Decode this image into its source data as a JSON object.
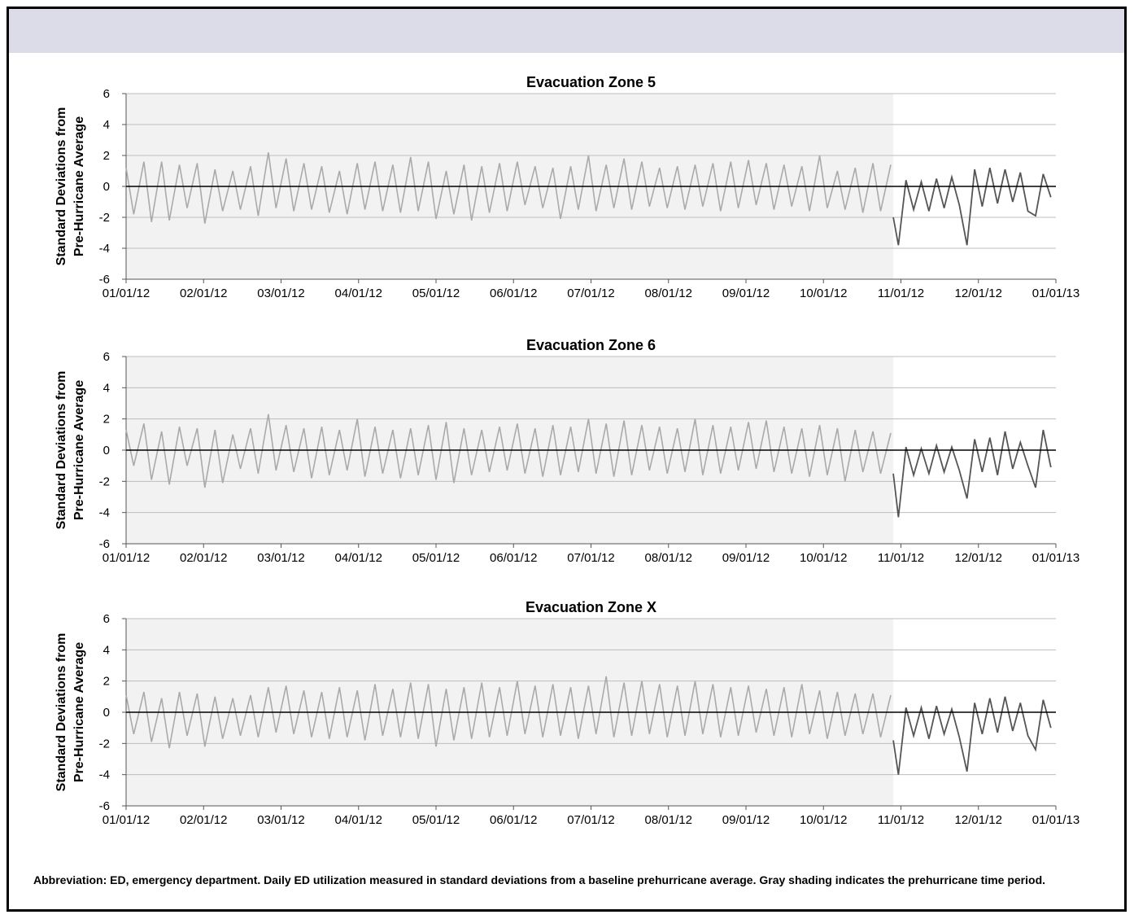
{
  "caption": "Abbreviation: ED, emergency department. Daily ED utilization measured in standard deviations from a baseline prehurricane average. Gray shading indicates the prehurricane time period.",
  "chart_data": [
    {
      "type": "line",
      "title": "Evacuation Zone 5",
      "ylabel_lines": [
        "Standard Deviations from",
        "Pre-Hurricane Average"
      ],
      "ylim": [
        -6,
        6
      ],
      "yticks": [
        -6,
        -4,
        -2,
        0,
        2,
        4,
        6
      ],
      "xlim": [
        "2012-01-01",
        "2013-01-01"
      ],
      "xtick_labels": [
        "01/01/12",
        "02/01/12",
        "03/01/12",
        "04/01/12",
        "05/01/12",
        "06/01/12",
        "07/01/12",
        "08/01/12",
        "09/01/12",
        "10/01/12",
        "11/01/12",
        "12/01/12",
        "01/01/13"
      ],
      "shaded_period": [
        "2012-01-01",
        "2012-10-29"
      ],
      "grid": true,
      "series": [
        {
          "color": "#aaaaaa",
          "x": [
            "2012-01-01",
            "2012-01-08",
            "2012-01-15",
            "2012-01-22",
            "2012-01-29",
            "2012-02-05",
            "2012-02-12",
            "2012-02-19",
            "2012-02-26",
            "2012-03-04",
            "2012-03-11",
            "2012-03-18",
            "2012-03-25",
            "2012-04-01",
            "2012-04-08",
            "2012-04-15",
            "2012-04-22",
            "2012-04-29",
            "2012-05-06",
            "2012-05-13",
            "2012-05-20",
            "2012-05-27",
            "2012-06-03",
            "2012-06-10",
            "2012-06-17",
            "2012-06-24",
            "2012-07-01",
            "2012-07-08",
            "2012-07-15",
            "2012-07-22",
            "2012-07-29",
            "2012-08-05",
            "2012-08-12",
            "2012-08-19",
            "2012-08-26",
            "2012-09-02",
            "2012-09-09",
            "2012-09-16",
            "2012-09-23",
            "2012-09-30",
            "2012-10-07",
            "2012-10-14",
            "2012-10-21",
            "2012-10-28"
          ],
          "y": [
            1.2,
            1.6,
            1.6,
            1.4,
            1.5,
            1.1,
            1.0,
            1.3,
            2.2,
            1.8,
            1.5,
            1.3,
            1.0,
            1.5,
            1.6,
            1.4,
            1.9,
            1.6,
            1.0,
            1.4,
            1.3,
            1.5,
            1.6,
            1.3,
            1.2,
            1.3,
            2.0,
            1.4,
            1.8,
            1.6,
            1.2,
            1.3,
            1.4,
            1.5,
            1.6,
            1.7,
            1.5,
            1.4,
            1.3,
            2.0,
            1.0,
            1.2,
            1.5,
            1.4
          ]
        },
        {
          "color": "#aaaaaa",
          "x": [
            "2012-01-04",
            "2012-01-11",
            "2012-01-18",
            "2012-01-25",
            "2012-02-01",
            "2012-02-08",
            "2012-02-15",
            "2012-02-22",
            "2012-02-29",
            "2012-03-07",
            "2012-03-14",
            "2012-03-21",
            "2012-03-28",
            "2012-04-04",
            "2012-04-11",
            "2012-04-18",
            "2012-04-25",
            "2012-05-02",
            "2012-05-09",
            "2012-05-16",
            "2012-05-23",
            "2012-05-30",
            "2012-06-06",
            "2012-06-13",
            "2012-06-20",
            "2012-06-27",
            "2012-07-04",
            "2012-07-11",
            "2012-07-18",
            "2012-07-25",
            "2012-08-01",
            "2012-08-08",
            "2012-08-15",
            "2012-08-22",
            "2012-08-29",
            "2012-09-05",
            "2012-09-12",
            "2012-09-19",
            "2012-09-26",
            "2012-10-03",
            "2012-10-10",
            "2012-10-17",
            "2012-10-24"
          ],
          "y": [
            -1.8,
            -2.3,
            -2.2,
            -1.4,
            -2.4,
            -1.6,
            -1.5,
            -1.9,
            -1.4,
            -1.6,
            -1.5,
            -1.7,
            -1.8,
            -1.5,
            -1.6,
            -1.7,
            -1.6,
            -2.1,
            -1.8,
            -2.2,
            -1.7,
            -1.6,
            -1.2,
            -1.4,
            -2.1,
            -1.5,
            -1.6,
            -1.4,
            -1.5,
            -1.3,
            -1.4,
            -1.5,
            -1.3,
            -1.6,
            -1.4,
            -1.2,
            -1.5,
            -1.3,
            -1.6,
            -1.4,
            -1.5,
            -1.7,
            -1.6
          ]
        },
        {
          "color": "#555555",
          "x": [
            "2012-10-29",
            "2012-10-31",
            "2012-11-03",
            "2012-11-06",
            "2012-11-09",
            "2012-11-12",
            "2012-11-15",
            "2012-11-18",
            "2012-11-21",
            "2012-11-24",
            "2012-11-27",
            "2012-11-30",
            "2012-12-03",
            "2012-12-06",
            "2012-12-09",
            "2012-12-12",
            "2012-12-15",
            "2012-12-18",
            "2012-12-21",
            "2012-12-24",
            "2012-12-27",
            "2012-12-30"
          ],
          "y": [
            -2.0,
            -3.8,
            0.4,
            -1.5,
            0.3,
            -1.6,
            0.5,
            -1.4,
            0.6,
            -1.2,
            -3.8,
            1.1,
            -1.3,
            1.2,
            -1.1,
            1.1,
            -1.0,
            0.9,
            -1.6,
            -1.9,
            0.8,
            -0.7
          ]
        }
      ]
    },
    {
      "type": "line",
      "title": "Evacuation Zone 6",
      "ylabel_lines": [
        "Standard Deviations from",
        "Pre-Hurricane Average"
      ],
      "ylim": [
        -6,
        6
      ],
      "yticks": [
        -6,
        -4,
        -2,
        0,
        2,
        4,
        6
      ],
      "xlim": [
        "2012-01-01",
        "2013-01-01"
      ],
      "xtick_labels": [
        "01/01/12",
        "02/01/12",
        "03/01/12",
        "04/01/12",
        "05/01/12",
        "06/01/12",
        "07/01/12",
        "08/01/12",
        "09/01/12",
        "10/01/12",
        "11/01/12",
        "12/01/12",
        "01/01/13"
      ],
      "shaded_period": [
        "2012-01-01",
        "2012-10-29"
      ],
      "grid": true,
      "series": [
        {
          "color": "#aaaaaa",
          "x": [
            "2012-01-01",
            "2012-01-08",
            "2012-01-15",
            "2012-01-22",
            "2012-01-29",
            "2012-02-05",
            "2012-02-12",
            "2012-02-19",
            "2012-02-26",
            "2012-03-04",
            "2012-03-11",
            "2012-03-18",
            "2012-03-25",
            "2012-04-01",
            "2012-04-08",
            "2012-04-15",
            "2012-04-22",
            "2012-04-29",
            "2012-05-06",
            "2012-05-13",
            "2012-05-20",
            "2012-05-27",
            "2012-06-03",
            "2012-06-10",
            "2012-06-17",
            "2012-06-24",
            "2012-07-01",
            "2012-07-08",
            "2012-07-15",
            "2012-07-22",
            "2012-07-29",
            "2012-08-05",
            "2012-08-12",
            "2012-08-19",
            "2012-08-26",
            "2012-09-02",
            "2012-09-09",
            "2012-09-16",
            "2012-09-23",
            "2012-09-30",
            "2012-10-07",
            "2012-10-14",
            "2012-10-21",
            "2012-10-28"
          ],
          "y": [
            1.3,
            1.7,
            1.2,
            1.5,
            1.4,
            1.3,
            1.0,
            1.4,
            2.3,
            1.6,
            1.4,
            1.5,
            1.3,
            2.0,
            1.5,
            1.3,
            1.4,
            1.6,
            1.8,
            1.4,
            1.3,
            1.5,
            1.7,
            1.4,
            1.6,
            1.5,
            2.0,
            1.7,
            1.9,
            1.6,
            1.5,
            1.4,
            2.0,
            1.6,
            1.5,
            1.8,
            1.9,
            1.5,
            1.4,
            1.6,
            1.4,
            1.3,
            1.2,
            1.1
          ]
        },
        {
          "color": "#aaaaaa",
          "x": [
            "2012-01-04",
            "2012-01-11",
            "2012-01-18",
            "2012-01-25",
            "2012-02-01",
            "2012-02-08",
            "2012-02-15",
            "2012-02-22",
            "2012-02-29",
            "2012-03-07",
            "2012-03-14",
            "2012-03-21",
            "2012-03-28",
            "2012-04-04",
            "2012-04-11",
            "2012-04-18",
            "2012-04-25",
            "2012-05-02",
            "2012-05-09",
            "2012-05-16",
            "2012-05-23",
            "2012-05-30",
            "2012-06-06",
            "2012-06-13",
            "2012-06-20",
            "2012-06-27",
            "2012-07-04",
            "2012-07-11",
            "2012-07-18",
            "2012-07-25",
            "2012-08-01",
            "2012-08-08",
            "2012-08-15",
            "2012-08-22",
            "2012-08-29",
            "2012-09-05",
            "2012-09-12",
            "2012-09-19",
            "2012-09-26",
            "2012-10-03",
            "2012-10-10",
            "2012-10-17",
            "2012-10-24"
          ],
          "y": [
            -1.0,
            -1.9,
            -2.2,
            -1.0,
            -2.4,
            -2.1,
            -1.2,
            -1.5,
            -1.3,
            -1.4,
            -1.8,
            -1.6,
            -1.3,
            -1.7,
            -1.5,
            -1.8,
            -1.6,
            -1.9,
            -2.1,
            -1.6,
            -1.4,
            -1.3,
            -1.5,
            -1.7,
            -1.6,
            -1.4,
            -1.5,
            -1.7,
            -1.6,
            -1.3,
            -1.5,
            -1.4,
            -1.6,
            -1.5,
            -1.3,
            -1.2,
            -1.4,
            -1.5,
            -1.7,
            -1.6,
            -2.0,
            -1.4,
            -1.5
          ]
        },
        {
          "color": "#555555",
          "x": [
            "2012-10-29",
            "2012-10-31",
            "2012-11-03",
            "2012-11-06",
            "2012-11-09",
            "2012-11-12",
            "2012-11-15",
            "2012-11-18",
            "2012-11-21",
            "2012-11-24",
            "2012-11-27",
            "2012-11-30",
            "2012-12-03",
            "2012-12-06",
            "2012-12-09",
            "2012-12-12",
            "2012-12-15",
            "2012-12-18",
            "2012-12-21",
            "2012-12-24",
            "2012-12-27",
            "2012-12-30"
          ],
          "y": [
            -1.5,
            -4.3,
            0.2,
            -1.6,
            0.1,
            -1.5,
            0.3,
            -1.4,
            0.2,
            -1.3,
            -3.1,
            0.7,
            -1.4,
            0.8,
            -1.6,
            1.2,
            -1.2,
            0.5,
            -1.0,
            -2.4,
            1.3,
            -1.1
          ]
        }
      ]
    },
    {
      "type": "line",
      "title": "Evacuation Zone X",
      "ylabel_lines": [
        "Standard Deviations from",
        "Pre-Hurricane Average"
      ],
      "ylim": [
        -6,
        6
      ],
      "yticks": [
        -6,
        -4,
        -2,
        0,
        2,
        4,
        6
      ],
      "xlim": [
        "2012-01-01",
        "2013-01-01"
      ],
      "xtick_labels": [
        "01/01/12",
        "02/01/12",
        "03/01/12",
        "04/01/12",
        "05/01/12",
        "06/01/12",
        "07/01/12",
        "08/01/12",
        "09/01/12",
        "10/01/12",
        "11/01/12",
        "12/01/12",
        "01/01/13"
      ],
      "shaded_period": [
        "2012-01-01",
        "2012-10-29"
      ],
      "grid": true,
      "series": [
        {
          "color": "#aaaaaa",
          "x": [
            "2012-01-01",
            "2012-01-08",
            "2012-01-15",
            "2012-01-22",
            "2012-01-29",
            "2012-02-05",
            "2012-02-12",
            "2012-02-19",
            "2012-02-26",
            "2012-03-04",
            "2012-03-11",
            "2012-03-18",
            "2012-03-25",
            "2012-04-01",
            "2012-04-08",
            "2012-04-15",
            "2012-04-22",
            "2012-04-29",
            "2012-05-06",
            "2012-05-13",
            "2012-05-20",
            "2012-05-27",
            "2012-06-03",
            "2012-06-10",
            "2012-06-17",
            "2012-06-24",
            "2012-07-01",
            "2012-07-08",
            "2012-07-15",
            "2012-07-22",
            "2012-07-29",
            "2012-08-05",
            "2012-08-12",
            "2012-08-19",
            "2012-08-26",
            "2012-09-02",
            "2012-09-09",
            "2012-09-16",
            "2012-09-23",
            "2012-09-30",
            "2012-10-07",
            "2012-10-14",
            "2012-10-21",
            "2012-10-28"
          ],
          "y": [
            1.1,
            1.3,
            0.9,
            1.3,
            1.2,
            1.0,
            0.9,
            1.1,
            1.6,
            1.7,
            1.4,
            1.3,
            1.6,
            1.4,
            1.8,
            1.5,
            1.9,
            1.8,
            1.5,
            1.6,
            1.9,
            1.6,
            2.0,
            1.7,
            1.8,
            1.6,
            1.7,
            2.3,
            1.9,
            2.0,
            1.8,
            1.7,
            2.0,
            1.8,
            1.6,
            1.7,
            1.5,
            1.6,
            1.8,
            1.4,
            1.3,
            1.2,
            1.2,
            1.1
          ]
        },
        {
          "color": "#aaaaaa",
          "x": [
            "2012-01-04",
            "2012-01-11",
            "2012-01-18",
            "2012-01-25",
            "2012-02-01",
            "2012-02-08",
            "2012-02-15",
            "2012-02-22",
            "2012-02-29",
            "2012-03-07",
            "2012-03-14",
            "2012-03-21",
            "2012-03-28",
            "2012-04-04",
            "2012-04-11",
            "2012-04-18",
            "2012-04-25",
            "2012-05-02",
            "2012-05-09",
            "2012-05-16",
            "2012-05-23",
            "2012-05-30",
            "2012-06-06",
            "2012-06-13",
            "2012-06-20",
            "2012-06-27",
            "2012-07-04",
            "2012-07-11",
            "2012-07-18",
            "2012-07-25",
            "2012-08-01",
            "2012-08-08",
            "2012-08-15",
            "2012-08-22",
            "2012-08-29",
            "2012-09-05",
            "2012-09-12",
            "2012-09-19",
            "2012-09-26",
            "2012-10-03",
            "2012-10-10",
            "2012-10-17",
            "2012-10-24"
          ],
          "y": [
            -1.4,
            -1.9,
            -2.3,
            -1.5,
            -2.2,
            -1.7,
            -1.5,
            -1.6,
            -1.3,
            -1.4,
            -1.6,
            -1.7,
            -1.6,
            -1.8,
            -1.5,
            -1.6,
            -1.7,
            -2.2,
            -1.8,
            -1.7,
            -1.6,
            -1.5,
            -1.4,
            -1.6,
            -1.5,
            -1.7,
            -1.4,
            -1.6,
            -1.5,
            -1.4,
            -1.6,
            -1.5,
            -1.4,
            -1.6,
            -1.5,
            -1.3,
            -1.5,
            -1.6,
            -1.4,
            -1.7,
            -1.5,
            -1.4,
            -1.6
          ]
        },
        {
          "color": "#555555",
          "x": [
            "2012-10-29",
            "2012-10-31",
            "2012-11-03",
            "2012-11-06",
            "2012-11-09",
            "2012-11-12",
            "2012-11-15",
            "2012-11-18",
            "2012-11-21",
            "2012-11-24",
            "2012-11-27",
            "2012-11-30",
            "2012-12-03",
            "2012-12-06",
            "2012-12-09",
            "2012-12-12",
            "2012-12-15",
            "2012-12-18",
            "2012-12-21",
            "2012-12-24",
            "2012-12-27",
            "2012-12-30"
          ],
          "y": [
            -1.8,
            -4.0,
            0.3,
            -1.5,
            0.3,
            -1.7,
            0.4,
            -1.4,
            0.2,
            -1.6,
            -3.8,
            0.6,
            -1.4,
            0.9,
            -1.3,
            1.0,
            -1.2,
            0.6,
            -1.5,
            -2.4,
            0.8,
            -1.0
          ]
        }
      ]
    }
  ]
}
